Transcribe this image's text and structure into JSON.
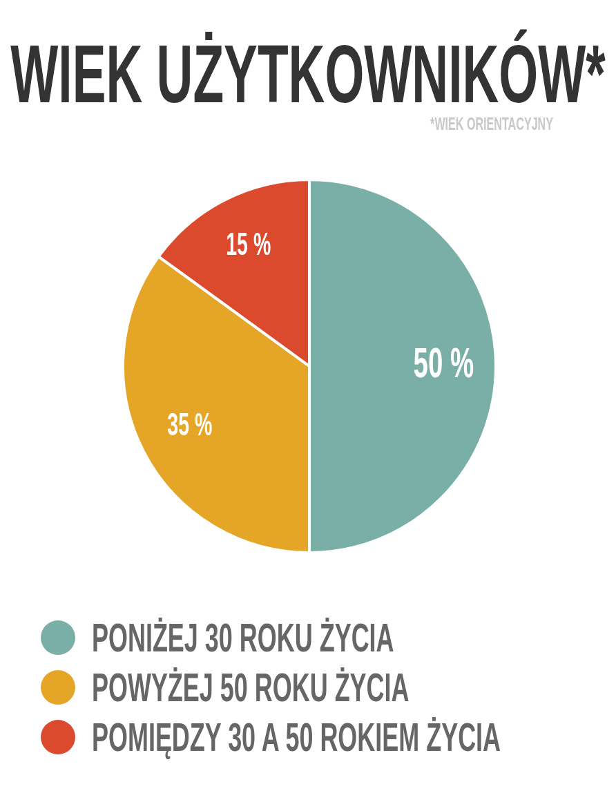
{
  "chart_data": {
    "type": "pie",
    "title": "WIEK UŻYTKOWNIKÓW*",
    "subtitle": "*WIEK ORIENTACYJNY",
    "categories": [
      "PONIŻEJ 30 ROKU ŻYCIA",
      "POWYŻEJ 50 ROKU ŻYCIA",
      "POMIĘDZY 30 A 50 ROKIEM ŻYCIA"
    ],
    "values": [
      50,
      35,
      15
    ],
    "colors": [
      "#7aafa8",
      "#e5a628",
      "#dc4a2e"
    ],
    "value_labels": [
      "50 %",
      "35 %",
      "15 %"
    ],
    "legend": "bottom"
  }
}
